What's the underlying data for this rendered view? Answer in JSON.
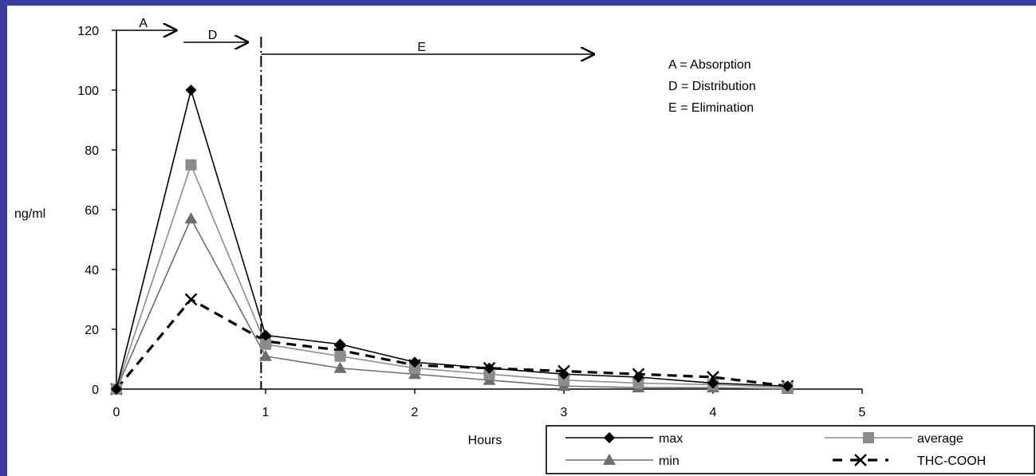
{
  "chart_data": {
    "type": "line",
    "x": [
      0,
      0.5,
      1,
      1.5,
      2,
      2.5,
      3,
      3.5,
      4,
      4.5
    ],
    "xlim": [
      0,
      5
    ],
    "ylim": [
      0,
      120
    ],
    "xticks": [
      "0",
      "1",
      "2",
      "3",
      "4",
      "5"
    ],
    "yticks": [
      "0",
      "20",
      "40",
      "60",
      "80",
      "100",
      "120"
    ],
    "xlabel": "Hours",
    "ylabel": "ng/ml",
    "grid": false,
    "legend_position": "bottom-right",
    "series": [
      {
        "name": "max",
        "marker": "diamond",
        "color": "#000000",
        "dash": "solid",
        "values": [
          0,
          100,
          18,
          15,
          9,
          7,
          5,
          4,
          2,
          1
        ]
      },
      {
        "name": "average",
        "marker": "square",
        "color": "#8c8c8c",
        "dash": "solid",
        "values": [
          0,
          75,
          15,
          11,
          7,
          5,
          3,
          2,
          1.5,
          0.5
        ]
      },
      {
        "name": "min",
        "marker": "triangle",
        "color": "#6e6e6e",
        "dash": "solid",
        "values": [
          0,
          57,
          11,
          7,
          5,
          3,
          1,
          0.5,
          0.5,
          0
        ]
      },
      {
        "name": "THC-COOH",
        "marker": "x",
        "color": "#000000",
        "dash": "dashed",
        "values": [
          0,
          30,
          16,
          13,
          8,
          7,
          6,
          5,
          4,
          1
        ]
      }
    ],
    "phases": [
      {
        "label": "A",
        "x_start": 0,
        "x_end": 0.4,
        "y": 120
      },
      {
        "label": "D",
        "x_start": 0.45,
        "x_end": 0.88,
        "y": 116
      },
      {
        "label": "E",
        "x_start": 0.97,
        "x_end": 3.2,
        "y": 112
      }
    ],
    "phase_divider_x": 0.97,
    "phase_key": [
      "A = Absorption",
      "D = Distribution",
      "E = Elimination"
    ]
  }
}
